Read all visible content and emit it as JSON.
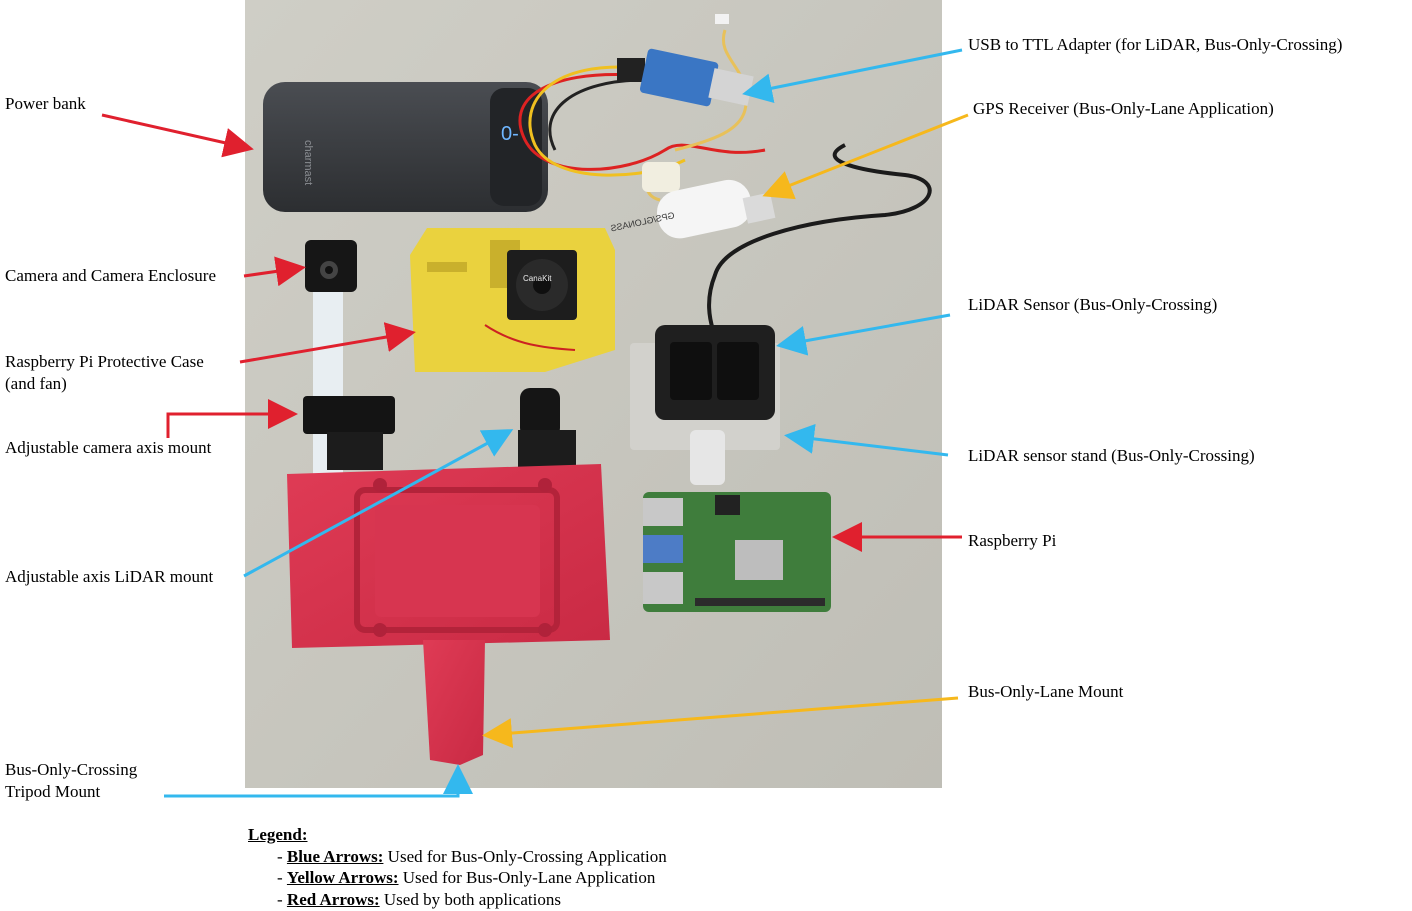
{
  "labels": {
    "power_bank": "Power bank",
    "camera": "Camera and Camera Enclosure",
    "pi_case_line1": "Raspberry Pi Protective Case",
    "pi_case_line2": "(and fan)",
    "camera_mount": "Adjustable camera axis mount",
    "lidar_mount": "Adjustable axis LiDAR mount",
    "tripod_line1": "Bus-Only-Crossing",
    "tripod_line2": "Tripod Mount",
    "usb_ttl": "USB to TTL Adapter (for LiDAR, Bus-Only-Crossing)",
    "gps": "GPS Receiver (Bus-Only-Lane Application)",
    "lidar_sensor": "LiDAR Sensor (Bus-Only-Crossing)",
    "lidar_stand": "LiDAR sensor stand (Bus-Only-Crossing)",
    "raspberry_pi": "Raspberry Pi",
    "lane_mount": "Bus-Only-Lane Mount"
  },
  "photo_text": {
    "power_bank_brand": "charmast",
    "fan_brand": "CanaKit",
    "gps_brand": "GPS/GLONASS"
  },
  "legend": {
    "title": "Legend:",
    "rows": [
      {
        "dash": "- ",
        "key": "Blue Arrows:",
        "text": " Used for Bus-Only-Crossing Application"
      },
      {
        "dash": "- ",
        "key": "Yellow Arrows:",
        "text": " Used for Bus-Only-Lane Application"
      },
      {
        "dash": "- ",
        "key": "Red Arrows:",
        "text": " Used by both applications"
      }
    ]
  },
  "colors": {
    "blue_arrow": "#33b8ee",
    "yellow_arrow": "#f6b81c",
    "red_arrow": "#e0202e",
    "background_surface": "#c9c8c0",
    "red_mount": "#d9344f",
    "yellow_case": "#ead23e",
    "pcb_green": "#3f7d3c"
  }
}
